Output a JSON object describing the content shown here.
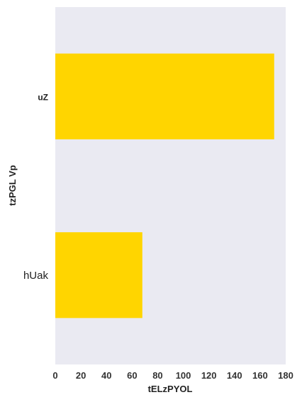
{
  "chart_data": {
    "type": "bar",
    "orientation": "horizontal",
    "categories": [
      "uZ",
      "hUak"
    ],
    "values": [
      171,
      68
    ],
    "xlabel": "tELzPYOL",
    "ylabel": "tzPGL Vp",
    "xlim": [
      0,
      180
    ],
    "xticks": [
      "0",
      "20",
      "40",
      "60",
      "80",
      "100",
      "120",
      "140",
      "160",
      "180"
    ],
    "grid": false,
    "bar_color": "#FFD500",
    "background_color": "#EAEAF2"
  }
}
